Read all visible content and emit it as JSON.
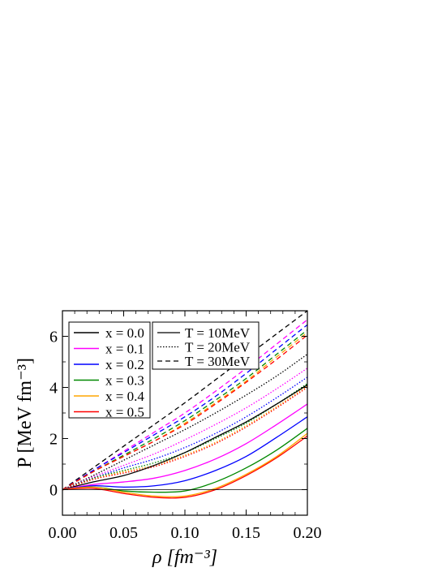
{
  "chart_data": {
    "type": "line",
    "xlabel": "ρ [fm⁻³]",
    "ylabel": "P [MeV fm⁻³]",
    "xlim": [
      0.0,
      0.2
    ],
    "ylim": [
      -1.0,
      7.0
    ],
    "xticks": [
      "0.00",
      "0.05",
      "0.10",
      "0.15",
      "0.20"
    ],
    "yticks": [
      "0",
      "2",
      "4",
      "6"
    ],
    "x": [
      0.0,
      0.025,
      0.05,
      0.075,
      0.1,
      0.125,
      0.15,
      0.175,
      0.2
    ],
    "legend_x": {
      "placement": "top-left",
      "entries": [
        {
          "label": "x = 0.0",
          "color": "#000000"
        },
        {
          "label": "x = 0.1",
          "color": "#ff00ff"
        },
        {
          "label": "x = 0.2",
          "color": "#0000ff"
        },
        {
          "label": "x = 0.3",
          "color": "#008800"
        },
        {
          "label": "x = 0.4",
          "color": "#ffa500"
        },
        {
          "label": "x = 0.5",
          "color": "#ff0000"
        }
      ]
    },
    "legend_T": {
      "placement": "top-center",
      "entries": [
        {
          "label": "T = 10MeV",
          "dash": "solid"
        },
        {
          "label": "T = 20MeV",
          "dash": "dotted"
        },
        {
          "label": "T = 30MeV",
          "dash": "dashed"
        }
      ]
    },
    "series": [
      {
        "x_frac": 0.0,
        "T": 10,
        "color": "#000000",
        "dash": "solid",
        "values": [
          0.0,
          0.3,
          0.55,
          0.95,
          1.45,
          2.05,
          2.65,
          3.35,
          4.1
        ]
      },
      {
        "x_frac": 0.1,
        "T": 10,
        "color": "#ff00ff",
        "dash": "solid",
        "values": [
          0.0,
          0.2,
          0.3,
          0.45,
          0.75,
          1.2,
          1.8,
          2.55,
          3.35
        ]
      },
      {
        "x_frac": 0.2,
        "T": 10,
        "color": "#0000ff",
        "dash": "solid",
        "values": [
          0.0,
          0.15,
          0.1,
          0.15,
          0.35,
          0.75,
          1.3,
          2.05,
          2.85
        ]
      },
      {
        "x_frac": 0.3,
        "T": 10,
        "color": "#008800",
        "dash": "solid",
        "values": [
          0.0,
          0.1,
          -0.05,
          -0.1,
          -0.05,
          0.3,
          0.85,
          1.55,
          2.4
        ]
      },
      {
        "x_frac": 0.4,
        "T": 10,
        "color": "#ffa500",
        "dash": "solid",
        "values": [
          0.0,
          0.1,
          -0.1,
          -0.25,
          -0.25,
          0.05,
          0.6,
          1.3,
          2.2
        ]
      },
      {
        "x_frac": 0.5,
        "T": 10,
        "color": "#ff0000",
        "dash": "solid",
        "values": [
          0.0,
          0.05,
          -0.15,
          -0.3,
          -0.3,
          0.0,
          0.55,
          1.25,
          2.1
        ]
      },
      {
        "x_frac": 0.0,
        "T": 20,
        "color": "#000000",
        "dash": "dotted",
        "values": [
          0.0,
          0.55,
          1.15,
          1.75,
          2.35,
          3.0,
          3.7,
          4.45,
          5.3
        ]
      },
      {
        "x_frac": 0.1,
        "T": 20,
        "color": "#ff00ff",
        "dash": "dotted",
        "values": [
          0.0,
          0.5,
          0.95,
          1.4,
          1.95,
          2.55,
          3.2,
          3.95,
          4.75
        ]
      },
      {
        "x_frac": 0.2,
        "T": 20,
        "color": "#0000ff",
        "dash": "dotted",
        "values": [
          0.0,
          0.45,
          0.85,
          1.2,
          1.65,
          2.2,
          2.85,
          3.6,
          4.4
        ]
      },
      {
        "x_frac": 0.3,
        "T": 20,
        "color": "#008800",
        "dash": "dotted",
        "values": [
          0.0,
          0.45,
          0.75,
          1.05,
          1.45,
          2.0,
          2.6,
          3.35,
          4.15
        ]
      },
      {
        "x_frac": 0.4,
        "T": 20,
        "color": "#ffa500",
        "dash": "dotted",
        "values": [
          0.0,
          0.4,
          0.7,
          0.95,
          1.35,
          1.85,
          2.5,
          3.25,
          4.05
        ]
      },
      {
        "x_frac": 0.5,
        "T": 20,
        "color": "#ff0000",
        "dash": "dotted",
        "values": [
          0.0,
          0.4,
          0.65,
          0.9,
          1.3,
          1.8,
          2.45,
          3.2,
          4.0
        ]
      },
      {
        "x_frac": 0.0,
        "T": 30,
        "color": "#000000",
        "dash": "dashed",
        "values": [
          0.0,
          0.85,
          1.7,
          2.55,
          3.4,
          4.3,
          5.2,
          6.1,
          7.0
        ]
      },
      {
        "x_frac": 0.1,
        "T": 30,
        "color": "#ff00ff",
        "dash": "dashed",
        "values": [
          0.0,
          0.75,
          1.5,
          2.25,
          3.0,
          3.85,
          4.75,
          5.7,
          6.65
        ]
      },
      {
        "x_frac": 0.2,
        "T": 30,
        "color": "#0000ff",
        "dash": "dashed",
        "values": [
          0.0,
          0.75,
          1.45,
          2.15,
          2.85,
          3.65,
          4.55,
          5.5,
          6.45
        ]
      },
      {
        "x_frac": 0.3,
        "T": 30,
        "color": "#008800",
        "dash": "dashed",
        "values": [
          0.0,
          0.7,
          1.35,
          2.0,
          2.7,
          3.5,
          4.35,
          5.3,
          6.25
        ]
      },
      {
        "x_frac": 0.4,
        "T": 30,
        "color": "#ffa500",
        "dash": "dashed",
        "values": [
          0.0,
          0.7,
          1.3,
          1.9,
          2.6,
          3.4,
          4.25,
          5.2,
          6.15
        ]
      },
      {
        "x_frac": 0.5,
        "T": 30,
        "color": "#ff0000",
        "dash": "dashed",
        "values": [
          0.0,
          0.7,
          1.3,
          1.9,
          2.55,
          3.35,
          4.2,
          5.1,
          6.05
        ]
      }
    ]
  }
}
